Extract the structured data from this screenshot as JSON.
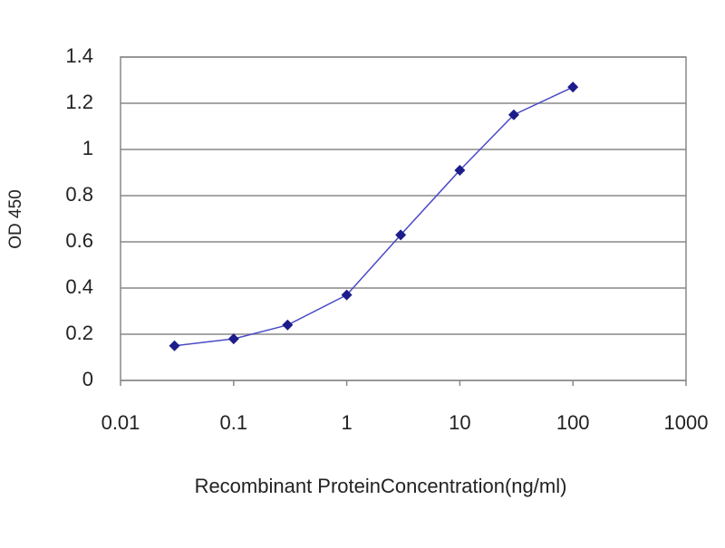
{
  "chart_data": {
    "type": "line",
    "x_label": "Recombinant ProteinConcentration(ng/ml)",
    "y_label": "OD 450",
    "x": [
      0.03,
      0.1,
      0.3,
      1,
      3,
      10,
      30,
      100
    ],
    "values": [
      0.15,
      0.18,
      0.24,
      0.37,
      0.63,
      0.91,
      1.15,
      1.27
    ],
    "color": "#1c1c8a",
    "line_color": "#4a4ac8",
    "x_log": true,
    "xlim": [
      0.01,
      1000
    ],
    "xticks": [
      0.01,
      0.1,
      1,
      10,
      100,
      1000
    ],
    "ylim": [
      0,
      1.4
    ],
    "yticks": [
      0,
      0.2,
      0.4,
      0.6,
      0.8,
      1,
      1.2,
      1.4
    ],
    "grid": true
  }
}
